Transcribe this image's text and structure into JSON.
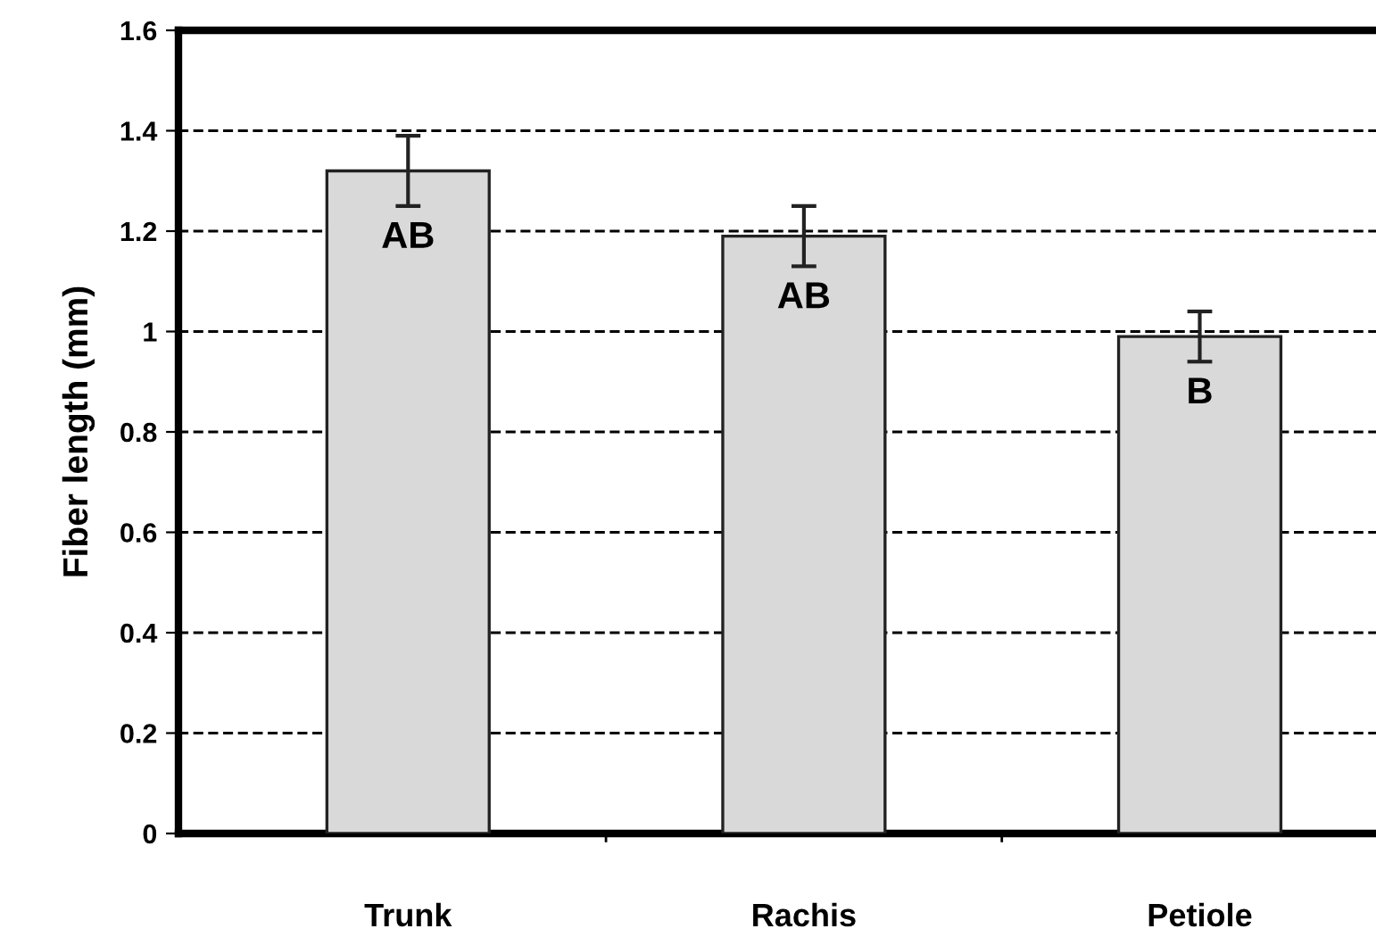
{
  "chart_data": {
    "type": "bar",
    "ylabel": "Fiber length (mm)",
    "categories": [
      "Trunk",
      "Rachis",
      "Petiole"
    ],
    "values": [
      1.32,
      1.19,
      0.99
    ],
    "errors": [
      0.07,
      0.06,
      0.05
    ],
    "color": "#d9d9d9",
    "ylim": [
      0,
      1.6
    ],
    "yticks": [
      {
        "value": 0,
        "label": "0"
      },
      0.2,
      0.4,
      0.6,
      0.8,
      {
        "value": 1,
        "label": "1"
      },
      1.2,
      1.4,
      1.6
    ],
    "grid": "y",
    "annotations": [
      "AB",
      "AB",
      "B"
    ]
  }
}
